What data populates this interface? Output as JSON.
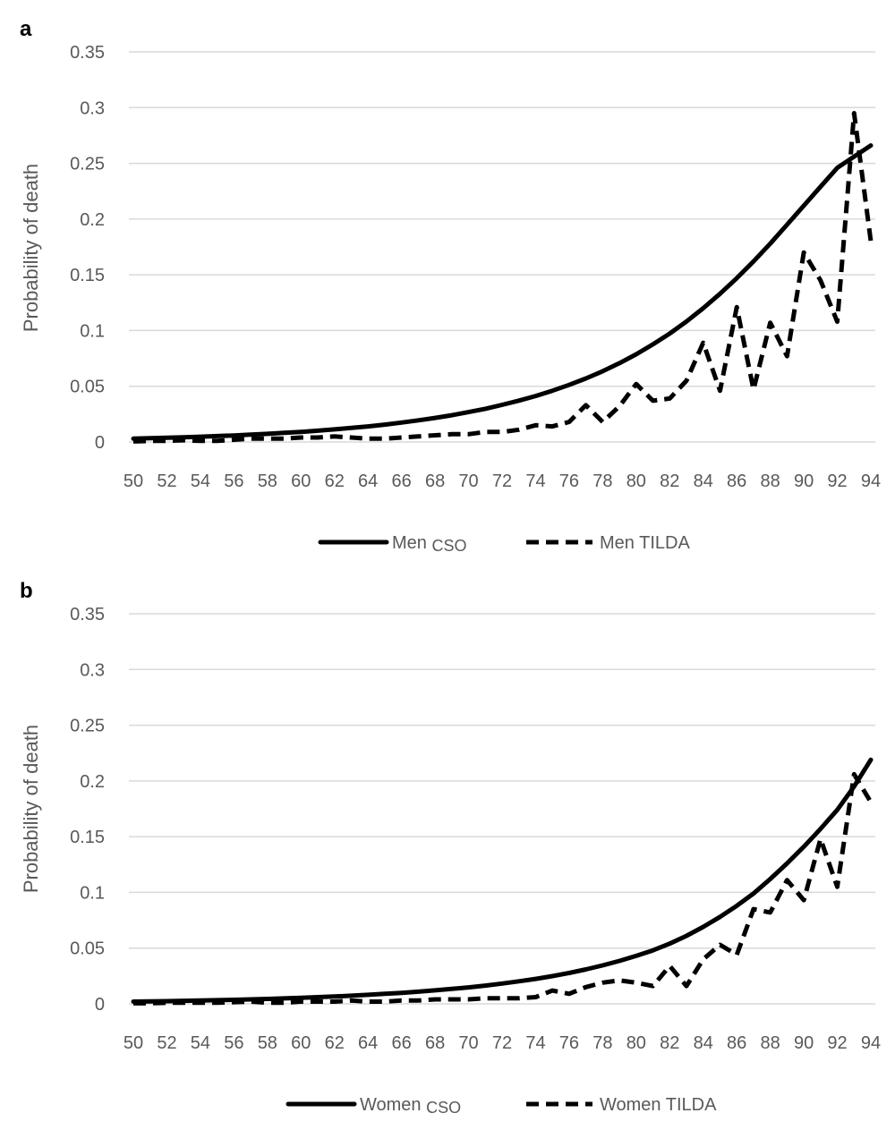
{
  "chart_data": [
    {
      "type": "line",
      "panel_label": "a",
      "title": "",
      "xlabel": "",
      "ylabel": "Probability of death",
      "ylim": [
        0,
        0.35
      ],
      "yticks": [
        "0",
        "0.05",
        "0.1",
        "0.15",
        "0.2",
        "0.25",
        "0.3",
        "0.35"
      ],
      "ytick_values": [
        0,
        0.05,
        0.1,
        0.15,
        0.2,
        0.25,
        0.3,
        0.35
      ],
      "xtick_labels": [
        "50",
        "52",
        "54",
        "56",
        "58",
        "60",
        "62",
        "64",
        "66",
        "68",
        "70",
        "72",
        "74",
        "76",
        "78",
        "80",
        "82",
        "84",
        "86",
        "88",
        "90",
        "92",
        "94"
      ],
      "x": [
        50,
        51,
        52,
        53,
        54,
        55,
        56,
        57,
        58,
        59,
        60,
        61,
        62,
        63,
        64,
        65,
        66,
        67,
        68,
        69,
        70,
        71,
        72,
        73,
        74,
        75,
        76,
        77,
        78,
        79,
        80,
        81,
        82,
        83,
        84,
        85,
        86,
        87,
        88,
        89,
        90,
        91,
        92,
        93,
        94
      ],
      "grid": true,
      "legend_position": "bottom",
      "series": [
        {
          "name": "Men CSO",
          "legend_name": "Men",
          "legend_suffix": "CSO",
          "style": "solid",
          "values": [
            0.003,
            0.0034,
            0.0038,
            0.0042,
            0.0047,
            0.0053,
            0.0059,
            0.0066,
            0.0073,
            0.0082,
            0.0091,
            0.0101,
            0.0113,
            0.0126,
            0.014,
            0.0156,
            0.0174,
            0.0194,
            0.0216,
            0.024,
            0.0268,
            0.0298,
            0.0333,
            0.0371,
            0.0413,
            0.046,
            0.0512,
            0.057,
            0.0635,
            0.0707,
            0.0787,
            0.0876,
            0.0973,
            0.1081,
            0.12,
            0.133,
            0.147,
            0.162,
            0.178,
            0.195,
            0.212,
            0.229,
            0.246,
            0.256,
            0.266
          ]
        },
        {
          "name": "Men TILDA",
          "legend_name": "Men TILDA",
          "style": "dashed",
          "values": [
            0.0005,
            0.001,
            0.001,
            0.0015,
            0.001,
            0.001,
            0.002,
            0.003,
            0.003,
            0.003,
            0.004,
            0.004,
            0.005,
            0.004,
            0.003,
            0.003,
            0.004,
            0.005,
            0.006,
            0.007,
            0.007,
            0.009,
            0.009,
            0.011,
            0.015,
            0.014,
            0.018,
            0.033,
            0.018,
            0.032,
            0.052,
            0.037,
            0.039,
            0.055,
            0.089,
            0.046,
            0.121,
            0.047,
            0.107,
            0.077,
            0.17,
            0.145,
            0.108,
            0.295,
            0.18
          ]
        }
      ]
    },
    {
      "type": "line",
      "panel_label": "b",
      "title": "",
      "xlabel": "",
      "ylabel": "Probability of death",
      "ylim": [
        0,
        0.35
      ],
      "yticks": [
        "0",
        "0.05",
        "0.1",
        "0.15",
        "0.2",
        "0.25",
        "0.3",
        "0.35"
      ],
      "ytick_values": [
        0,
        0.05,
        0.1,
        0.15,
        0.2,
        0.25,
        0.3,
        0.35
      ],
      "xtick_labels": [
        "50",
        "52",
        "54",
        "56",
        "58",
        "60",
        "62",
        "64",
        "66",
        "68",
        "70",
        "72",
        "74",
        "76",
        "78",
        "80",
        "82",
        "84",
        "86",
        "88",
        "90",
        "92",
        "94"
      ],
      "x": [
        50,
        51,
        52,
        53,
        54,
        55,
        56,
        57,
        58,
        59,
        60,
        61,
        62,
        63,
        64,
        65,
        66,
        67,
        68,
        69,
        70,
        71,
        72,
        73,
        74,
        75,
        76,
        77,
        78,
        79,
        80,
        81,
        82,
        83,
        84,
        85,
        86,
        87,
        88,
        89,
        90,
        91,
        92,
        93,
        94
      ],
      "grid": true,
      "legend_position": "bottom",
      "series": [
        {
          "name": "Women CSO",
          "legend_name": "Women",
          "legend_suffix": "CSO",
          "style": "solid",
          "values": [
            0.002,
            0.0022,
            0.0024,
            0.0027,
            0.003,
            0.0033,
            0.0036,
            0.004,
            0.0044,
            0.0049,
            0.0054,
            0.006,
            0.0066,
            0.0073,
            0.0081,
            0.009,
            0.0099,
            0.0109,
            0.0121,
            0.0134,
            0.0148,
            0.0164,
            0.0182,
            0.0202,
            0.0224,
            0.0249,
            0.0277,
            0.0309,
            0.0345,
            0.0385,
            0.043,
            0.048,
            0.054,
            0.061,
            0.069,
            0.078,
            0.088,
            0.099,
            0.112,
            0.126,
            0.141,
            0.157,
            0.174,
            0.195,
            0.219
          ]
        },
        {
          "name": "Women TILDA",
          "legend_name": "Women TILDA",
          "style": "dashed",
          "values": [
            0.0005,
            0.0005,
            0.001,
            0.001,
            0.001,
            0.001,
            0.0015,
            0.002,
            0.001,
            0.001,
            0.002,
            0.002,
            0.002,
            0.003,
            0.002,
            0.002,
            0.003,
            0.003,
            0.004,
            0.004,
            0.004,
            0.005,
            0.005,
            0.005,
            0.006,
            0.012,
            0.009,
            0.015,
            0.019,
            0.021,
            0.019,
            0.016,
            0.034,
            0.016,
            0.04,
            0.053,
            0.044,
            0.085,
            0.082,
            0.111,
            0.093,
            0.148,
            0.105,
            0.206,
            0.181
          ]
        }
      ]
    }
  ]
}
